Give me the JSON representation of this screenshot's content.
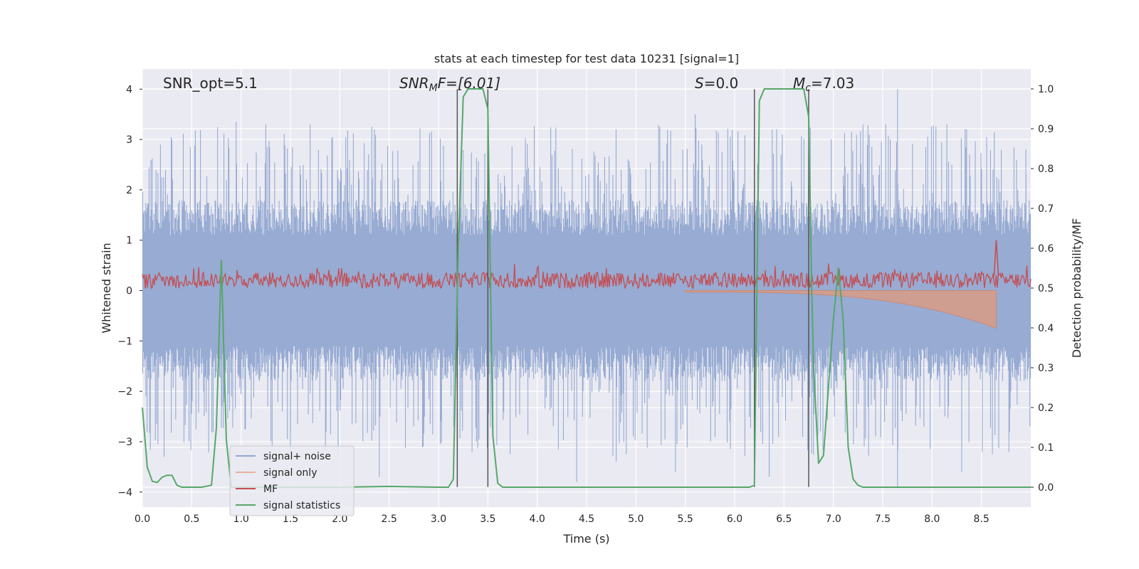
{
  "chart_data": {
    "type": "line",
    "title": "stats at each timestep for test data 10231 [signal=1]",
    "xlabel": "Time (s)",
    "ylabel_left": "Whitened strain",
    "ylabel_right": "Detection probability/MF",
    "xlim": [
      0.0,
      9.0
    ],
    "ylim_left": [
      -4.3,
      4.4
    ],
    "ylim_right": [
      -0.05,
      1.05
    ],
    "xticks": [
      "0.0",
      "0.5",
      "1.0",
      "1.5",
      "2.0",
      "2.5",
      "3.0",
      "3.5",
      "4.0",
      "4.5",
      "5.0",
      "5.5",
      "6.0",
      "6.5",
      "7.0",
      "7.5",
      "8.0",
      "8.5"
    ],
    "yticks_left": [
      "4",
      "3",
      "2",
      "1",
      "0",
      "−1",
      "−2",
      "−3",
      "−4"
    ],
    "yticks_right": [
      "1.0",
      "0.9",
      "0.8",
      "0.7",
      "0.6",
      "0.5",
      "0.4",
      "0.3",
      "0.2",
      "0.1",
      "0.0"
    ],
    "grid": true,
    "legend_position": "lower-left",
    "annotations": {
      "snr_opt": "SNR_opt=5.1",
      "snr_mf_main": "SNR",
      "snr_mf_sub": "M",
      "snr_mf_rest": "F=[6.01]",
      "s_main": "S",
      "s_rest": "=0.0",
      "mc_main": "M",
      "mc_sub": "c",
      "mc_rest": "=7.03"
    },
    "vertical_lines_x": [
      3.19,
      3.5,
      6.2,
      6.75
    ],
    "series": [
      {
        "name": "signal+ noise",
        "color": "#92a8d1",
        "description_values": "noise band approx ±1.6 with spikes to ±3.3, peak 4.0 near t=7.65"
      },
      {
        "name": "signal only",
        "color": "#d99a85",
        "chirp_start_x": 5.5,
        "chirp_end_x": 8.65,
        "chirp_end_amplitude": -0.75
      },
      {
        "name": "MF",
        "color": "#c44e52",
        "baseline": 0.2,
        "spike_x": 8.65,
        "spike_y": 1.0
      },
      {
        "name": "signal statistics",
        "color": "#55a868",
        "axis": "right",
        "x": [
          0.0,
          0.05,
          0.1,
          0.15,
          0.2,
          0.25,
          0.3,
          0.35,
          0.4,
          0.5,
          0.6,
          0.7,
          0.75,
          0.8,
          0.85,
          0.9,
          1.0,
          1.5,
          2.0,
          2.5,
          3.0,
          3.1,
          3.15,
          3.2,
          3.25,
          3.3,
          3.35,
          3.4,
          3.45,
          3.5,
          3.55,
          3.6,
          3.65,
          3.7,
          4.0,
          5.0,
          6.0,
          6.15,
          6.2,
          6.25,
          6.3,
          6.35,
          6.4,
          6.5,
          6.6,
          6.7,
          6.75,
          6.78,
          6.8,
          6.85,
          6.9,
          7.0,
          7.05,
          7.1,
          7.15,
          7.2,
          7.25,
          7.3,
          7.35,
          7.4,
          7.5,
          8.0,
          8.5,
          9.0
        ],
        "y": [
          0.2,
          0.05,
          0.015,
          0.012,
          0.025,
          0.03,
          0.03,
          0.005,
          0.0,
          0.0,
          0.0,
          0.005,
          0.15,
          0.57,
          0.12,
          0.0,
          0.0,
          0.0,
          0.0,
          0.002,
          0.0,
          0.0,
          0.02,
          0.6,
          0.98,
          1.0,
          1.0,
          1.0,
          1.0,
          0.95,
          0.13,
          0.01,
          0.0,
          0.0,
          0.0,
          0.0,
          0.0,
          0.0,
          0.005,
          0.97,
          1.0,
          1.0,
          1.0,
          1.0,
          1.0,
          1.0,
          0.93,
          0.5,
          0.3,
          0.06,
          0.08,
          0.42,
          0.55,
          0.42,
          0.1,
          0.02,
          0.005,
          0.0,
          0.0,
          0.0,
          0.0,
          0.0,
          0.0,
          0.0
        ]
      }
    ]
  }
}
